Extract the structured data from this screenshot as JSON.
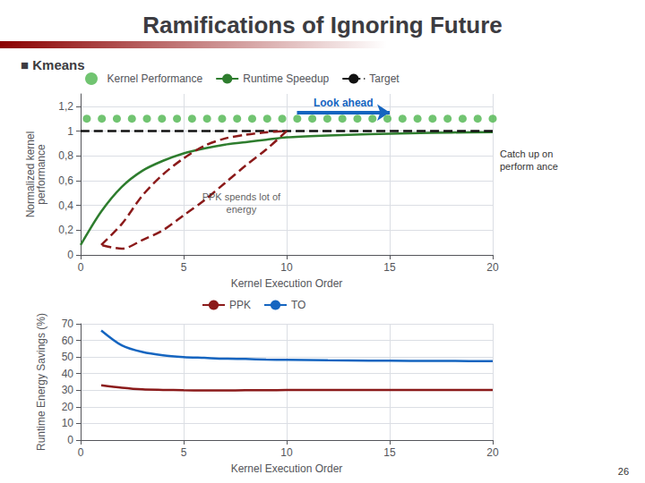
{
  "chart_data": [
    {
      "type": "line",
      "title": "Ramifications of Ignoring Future",
      "subtitle": "■ Kmeans",
      "xlabel": "Kernel Execution Order",
      "ylabel": "Normalized kernel\nperformance",
      "xlim": [
        0,
        20
      ],
      "ylim": [
        0,
        1.3
      ],
      "xticks": [
        0,
        5,
        10,
        15,
        20
      ],
      "yticks": [
        0,
        {
          "value": 0.2,
          "label": "0,2"
        },
        {
          "value": 0.4,
          "label": "0,4"
        },
        {
          "value": 0.6,
          "label": "0,6"
        },
        {
          "value": 0.8,
          "label": "0,8"
        },
        1,
        {
          "value": 1.2,
          "label": "1,2"
        }
      ],
      "grid": true,
      "legend": "top",
      "series": [
        {
          "name": "Kernel Performance",
          "type": "scatter",
          "marker": "circle",
          "color": "#4DB54D",
          "x": [
            0.3,
            1.02962963,
            1.75925926,
            2.48888889,
            3.21851852,
            3.94814815,
            4.67777778,
            5.40740741,
            6.13703704,
            6.86666667,
            7.5962963,
            8.32592593,
            9.05555556,
            9.78518519,
            10.51481481,
            11.24444444,
            11.97407407,
            12.7037037,
            13.43333333,
            14.16296296,
            14.89259259,
            15.62222222,
            16.35185185,
            17.08148148,
            17.81111111,
            18.54074074,
            19.27037037,
            20.0
          ],
          "values": [
            1.1,
            1.1,
            1.1,
            1.1,
            1.1,
            1.1,
            1.1,
            1.1,
            1.1,
            1.1,
            1.1,
            1.1,
            1.1,
            1.1,
            1.1,
            1.1,
            1.1,
            1.1,
            1.1,
            1.1,
            1.1,
            1.1,
            1.1,
            1.1,
            1.1,
            1.1,
            1.1,
            1.1
          ]
        },
        {
          "name": "Runtime Speedup",
          "type": "line",
          "line_style": "solid",
          "color": "#2E7D2E",
          "x": [
            0,
            1,
            2,
            3,
            4,
            5,
            6,
            7,
            8,
            9,
            10,
            12,
            14,
            16,
            18,
            20
          ],
          "values": [
            0.08,
            0.35,
            0.55,
            0.68,
            0.76,
            0.82,
            0.86,
            0.89,
            0.91,
            0.93,
            0.95,
            0.965,
            0.975,
            0.982,
            0.988,
            0.992
          ]
        },
        {
          "name": "Target",
          "type": "line",
          "line_style": "dashed",
          "color": "#111111",
          "x": [
            0,
            20
          ],
          "values": [
            1.0,
            1.0
          ]
        },
        {
          "type": "line",
          "line_style": "dashed",
          "color": "#8B1A1A",
          "x": [
            1,
            2,
            3,
            4,
            5,
            6,
            7,
            8,
            9,
            10,
            10,
            9,
            8,
            7,
            6,
            5,
            4,
            3,
            2,
            1
          ],
          "values": [
            0.08,
            0.25,
            0.48,
            0.65,
            0.78,
            0.88,
            0.94,
            0.97,
            0.99,
            1.0,
            1.0,
            0.85,
            0.72,
            0.58,
            0.44,
            0.32,
            0.2,
            0.12,
            0.05,
            0.08
          ]
        }
      ],
      "annotations": [
        {
          "text": "PPK spends lot of\nenergy",
          "x": 7.8,
          "y": 0.42
        },
        {
          "text": "Look ahead",
          "x": [
            10.5,
            15.0
          ],
          "y": 1.15,
          "color": "#1565C0"
        },
        {
          "text": "Catch up on\nperform ance"
        }
      ]
    },
    {
      "type": "line",
      "xlabel": "Kernel Execution Order",
      "ylabel": "Runtime Energy Savings (%)",
      "xlim": [
        0,
        20
      ],
      "ylim": [
        0,
        70
      ],
      "xticks": [
        0,
        5,
        10,
        15,
        20
      ],
      "yticks": [
        0,
        10,
        20,
        30,
        40,
        50,
        60,
        70
      ],
      "grid": true,
      "legend": "top",
      "series": [
        {
          "name": "PPK",
          "type": "line",
          "line_style": "solid",
          "color": "#8B1A1A",
          "x": [
            1,
            2,
            3,
            4,
            5,
            6,
            7,
            8,
            9,
            10,
            12,
            14,
            16,
            18,
            20
          ],
          "values": [
            33,
            31.5,
            30.5,
            30.2,
            30.0,
            29.9,
            29.9,
            30.0,
            30.0,
            30.1,
            30.1,
            30.1,
            30.2,
            30.2,
            30.2
          ]
        },
        {
          "name": "TO",
          "type": "line",
          "line_style": "solid",
          "color": "#1565C0",
          "x": [
            1,
            2,
            3,
            4,
            5,
            6,
            7,
            8,
            9,
            10,
            12,
            14,
            16,
            18,
            20
          ],
          "values": [
            66,
            57,
            53,
            51,
            50,
            49.5,
            49,
            48.8,
            48.5,
            48.3,
            48.0,
            47.8,
            47.7,
            47.6,
            47.5
          ]
        }
      ],
      "annotations": [
        {
          "text": "26"
        }
      ]
    }
  ]
}
